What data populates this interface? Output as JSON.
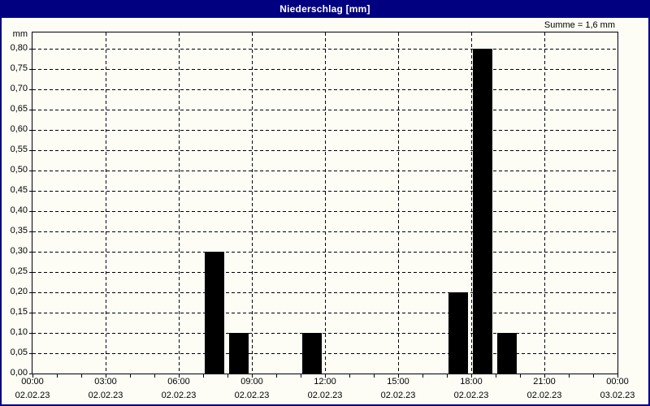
{
  "window": {
    "title": "Niederschlag [mm]"
  },
  "summary_label": "Summe = 1,6 mm",
  "chart_data": {
    "type": "bar",
    "title": "Niederschlag [mm]",
    "unit_label": "mm",
    "sum_label": "Summe = 1,6 mm",
    "ylabel": "mm",
    "xlabel": "",
    "ylim": [
      0,
      0.8
    ],
    "ytick_step": 0.05,
    "ytick_labels": [
      "0,80",
      "0,75",
      "0,70",
      "0,65",
      "0,60",
      "0,55",
      "0,50",
      "0,45",
      "0,40",
      "0,35",
      "0,30",
      "0,25",
      "0,20",
      "0,15",
      "0,10",
      "0,05",
      "0,00"
    ],
    "grid": "dashed",
    "legend": "none",
    "x_range_hours": [
      0,
      24
    ],
    "xticks": [
      {
        "hour": 0,
        "time": "00:00",
        "date": "02.02.23"
      },
      {
        "hour": 3,
        "time": "03:00",
        "date": "02.02.23"
      },
      {
        "hour": 6,
        "time": "06:00",
        "date": "02.02.23"
      },
      {
        "hour": 9,
        "time": "09:00",
        "date": "02.02.23"
      },
      {
        "hour": 12,
        "time": "12:00",
        "date": "02.02.23"
      },
      {
        "hour": 15,
        "time": "15:00",
        "date": "02.02.23"
      },
      {
        "hour": 18,
        "time": "18:00",
        "date": "02.02.23"
      },
      {
        "hour": 21,
        "time": "21:00",
        "date": "02.02.23"
      },
      {
        "hour": 24,
        "time": "00:00",
        "date": "03.02.23"
      }
    ],
    "minor_xtick_every_hours": 1,
    "bars": [
      {
        "start_hour": 7,
        "value": 0.3
      },
      {
        "start_hour": 8,
        "value": 0.1
      },
      {
        "start_hour": 11,
        "value": 0.1
      },
      {
        "start_hour": 17,
        "value": 0.2
      },
      {
        "start_hour": 18,
        "value": 0.8
      },
      {
        "start_hour": 19,
        "value": 0.1
      }
    ],
    "sum_value_mm": 1.6,
    "bar_color": "#000000"
  },
  "colors": {
    "titlebar_bg": "#000080",
    "titlebar_text": "#ffffff",
    "frame": "#000080",
    "background": "#fdfdf6",
    "grid": "#000000",
    "bar": "#000000",
    "text": "#000000"
  }
}
